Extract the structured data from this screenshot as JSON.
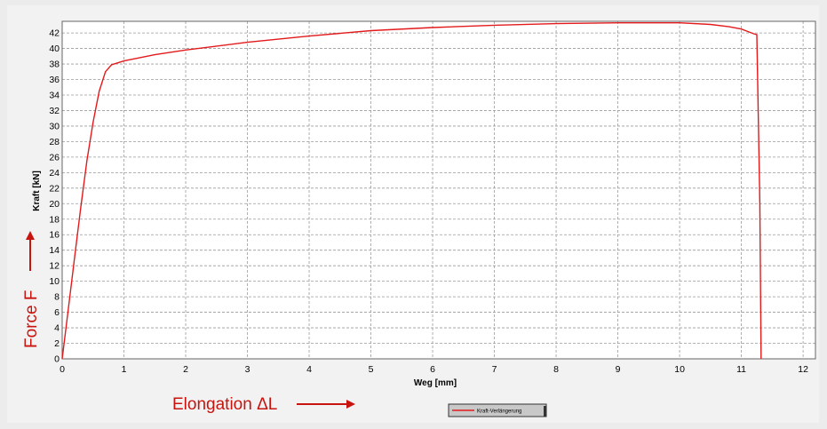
{
  "chart_data": {
    "type": "line",
    "xlabel": "Weg [mm]",
    "ylabel": "Kraft [kN]",
    "xlim": [
      0,
      12.2
    ],
    "ylim": [
      0,
      43.5
    ],
    "x_ticks": [
      "0",
      "1",
      "2",
      "3",
      "4",
      "5",
      "6",
      "7",
      "8",
      "9",
      "10",
      "11",
      "12"
    ],
    "y_ticks": [
      "0",
      "2",
      "4",
      "6",
      "8",
      "10",
      "12",
      "14",
      "16",
      "18",
      "20",
      "22",
      "24",
      "26",
      "28",
      "30",
      "32",
      "34",
      "36",
      "38",
      "40",
      "42"
    ],
    "grid": true,
    "legend_position": "bottom-center",
    "series": [
      {
        "name": "Kraft-Verlängerung",
        "color": "#e31a1c",
        "x": [
          0,
          0.1,
          0.2,
          0.3,
          0.4,
          0.5,
          0.6,
          0.7,
          0.8,
          1.0,
          1.5,
          2.0,
          3.0,
          4.0,
          5.0,
          6.0,
          7.0,
          8.0,
          9.0,
          10.0,
          10.5,
          10.8,
          11.0,
          11.1,
          11.2,
          11.25,
          11.3,
          11.32
        ],
        "y": [
          0,
          6.5,
          13,
          19.5,
          25.5,
          30.5,
          34.5,
          37,
          37.9,
          38.4,
          39.2,
          39.8,
          40.8,
          41.6,
          42.3,
          42.7,
          43.0,
          43.2,
          43.3,
          43.3,
          43.1,
          42.8,
          42.5,
          42.2,
          41.9,
          41.8,
          20,
          0
        ]
      }
    ],
    "annotations": {
      "force": "Force F",
      "elongation": "Elongation ΔL"
    }
  }
}
